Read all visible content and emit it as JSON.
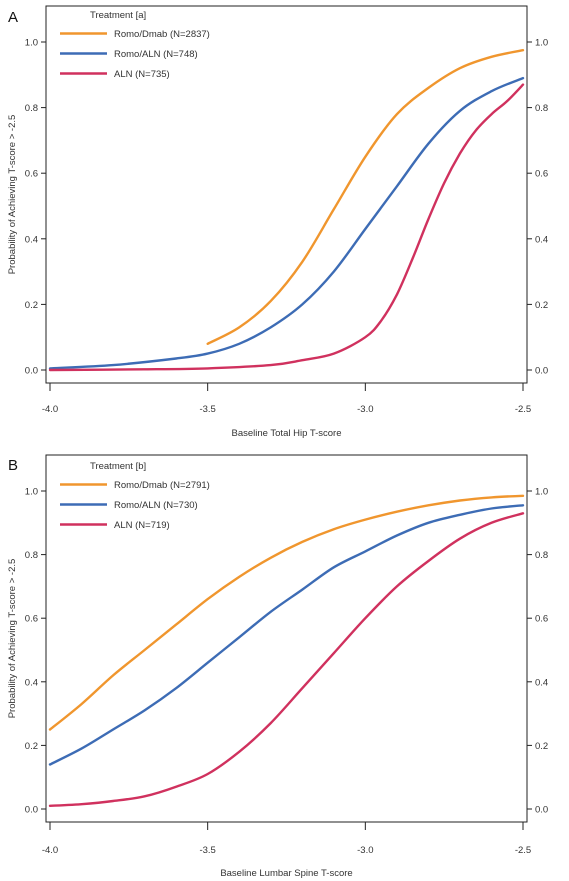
{
  "chart_data": [
    {
      "panel_label": "A",
      "type": "line",
      "xlabel": "Baseline Total Hip T-score",
      "ylabel": "Probability of Achieving T-score > -2.5",
      "xlim": [
        -4.0,
        -2.5
      ],
      "ylim": [
        0.0,
        1.0
      ],
      "xticks": [
        "-4.0",
        "-3.5",
        "-3.0",
        "-2.5"
      ],
      "yticks": [
        "0.0",
        "0.2",
        "0.4",
        "0.6",
        "0.8",
        "1.0"
      ],
      "right_axis_ticks": true,
      "grid": false,
      "legend_title": "Treatment [a]",
      "legend_position": "top-left",
      "series": [
        {
          "name": "Romo/Dmab (N=2837)",
          "color": "#f0962e",
          "x": [
            -3.5,
            -3.4,
            -3.3,
            -3.2,
            -3.1,
            -3.0,
            -2.9,
            -2.8,
            -2.7,
            -2.6,
            -2.5
          ],
          "y": [
            0.08,
            0.13,
            0.21,
            0.33,
            0.49,
            0.65,
            0.78,
            0.86,
            0.92,
            0.955,
            0.975
          ]
        },
        {
          "name": "Romo/ALN (N=748)",
          "color": "#3d6cb5",
          "x": [
            -4.0,
            -3.8,
            -3.6,
            -3.5,
            -3.4,
            -3.3,
            -3.2,
            -3.1,
            -3.0,
            -2.9,
            -2.8,
            -2.7,
            -2.6,
            -2.5
          ],
          "y": [
            0.005,
            0.015,
            0.035,
            0.05,
            0.08,
            0.13,
            0.2,
            0.3,
            0.43,
            0.56,
            0.69,
            0.79,
            0.85,
            0.89
          ]
        },
        {
          "name": "ALN (N=735)",
          "color": "#d0315e",
          "x": [
            -4.0,
            -3.7,
            -3.5,
            -3.3,
            -3.2,
            -3.1,
            -3.0,
            -2.95,
            -2.9,
            -2.85,
            -2.8,
            -2.75,
            -2.7,
            -2.65,
            -2.6,
            -2.55,
            -2.5
          ],
          "y": [
            0.0,
            0.002,
            0.005,
            0.015,
            0.03,
            0.05,
            0.1,
            0.15,
            0.23,
            0.34,
            0.46,
            0.57,
            0.66,
            0.73,
            0.78,
            0.82,
            0.87
          ]
        }
      ]
    },
    {
      "panel_label": "B",
      "type": "line",
      "xlabel": "Baseline Lumbar Spine T-score",
      "ylabel": "Probability of Achieving T-score > -2.5",
      "xlim": [
        -4.0,
        -2.5
      ],
      "ylim": [
        0.0,
        1.0
      ],
      "xticks": [
        "-4.0",
        "-3.5",
        "-3.0",
        "-2.5"
      ],
      "yticks": [
        "0.0",
        "0.2",
        "0.4",
        "0.6",
        "0.8",
        "1.0"
      ],
      "right_axis_ticks": true,
      "grid": false,
      "legend_title": "Treatment [b]",
      "legend_position": "top-left",
      "series": [
        {
          "name": "Romo/Dmab (N=2791)",
          "color": "#f0962e",
          "x": [
            -4.0,
            -3.9,
            -3.8,
            -3.7,
            -3.6,
            -3.5,
            -3.4,
            -3.3,
            -3.2,
            -3.1,
            -3.0,
            -2.9,
            -2.8,
            -2.7,
            -2.6,
            -2.5
          ],
          "y": [
            0.25,
            0.33,
            0.42,
            0.5,
            0.58,
            0.66,
            0.73,
            0.79,
            0.84,
            0.88,
            0.91,
            0.935,
            0.955,
            0.97,
            0.98,
            0.985
          ]
        },
        {
          "name": "Romo/ALN (N=730)",
          "color": "#3d6cb5",
          "x": [
            -4.0,
            -3.9,
            -3.8,
            -3.7,
            -3.6,
            -3.5,
            -3.4,
            -3.3,
            -3.2,
            -3.1,
            -3.0,
            -2.9,
            -2.8,
            -2.7,
            -2.6,
            -2.5
          ],
          "y": [
            0.14,
            0.19,
            0.25,
            0.31,
            0.38,
            0.46,
            0.54,
            0.62,
            0.69,
            0.76,
            0.81,
            0.86,
            0.9,
            0.925,
            0.945,
            0.955
          ]
        },
        {
          "name": "ALN (N=719)",
          "color": "#d0315e",
          "x": [
            -4.0,
            -3.9,
            -3.8,
            -3.7,
            -3.6,
            -3.5,
            -3.4,
            -3.3,
            -3.2,
            -3.1,
            -3.0,
            -2.9,
            -2.8,
            -2.7,
            -2.6,
            -2.5
          ],
          "y": [
            0.01,
            0.015,
            0.025,
            0.04,
            0.07,
            0.11,
            0.18,
            0.27,
            0.38,
            0.49,
            0.6,
            0.7,
            0.78,
            0.85,
            0.9,
            0.93
          ]
        }
      ]
    }
  ]
}
